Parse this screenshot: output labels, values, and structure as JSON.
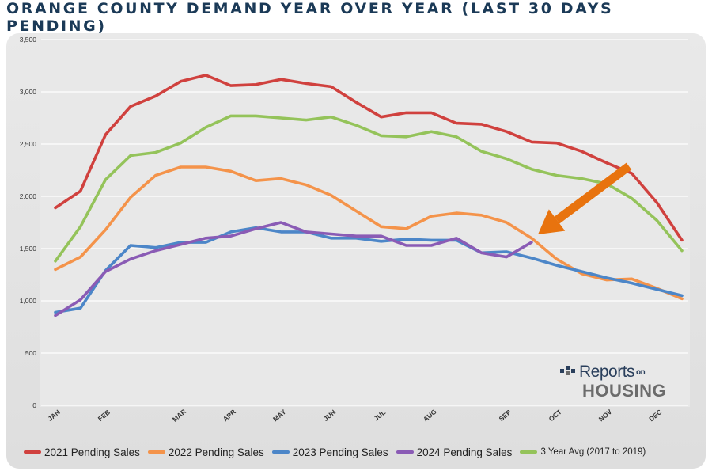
{
  "title": "ORANGE COUNTY DEMAND YEAR OVER YEAR (LAST 30 DAYS PENDING)",
  "logo": {
    "line1": "Reports",
    "on": "on",
    "line2": "HOUSING"
  },
  "arrow_color": "#e8730e",
  "chart_data": {
    "type": "line",
    "ylim": [
      0,
      3500
    ],
    "yticks": [
      0,
      500,
      1000,
      1500,
      2000,
      2500,
      3000,
      3500
    ],
    "ytick_labels": [
      "0",
      "500",
      "1,000",
      "1,500",
      "2,000",
      "2,500",
      "3,000",
      "3,500"
    ],
    "xlim": [
      0,
      23
    ],
    "xtick_positions": [
      0,
      2,
      5,
      7,
      9,
      11,
      13,
      15,
      18,
      20,
      22,
      24
    ],
    "xtick_labels": [
      "JAN",
      "FEB",
      "MAR",
      "APR",
      "MAY",
      "JUN",
      "JUL",
      "AUG",
      "SEP",
      "OCT",
      "NOV",
      "DEC"
    ],
    "series": [
      {
        "name": "2021 Pending Sales",
        "color": "#d0413e",
        "values": [
          1890,
          2050,
          2590,
          2860,
          2960,
          3100,
          3160,
          3060,
          3070,
          3120,
          3080,
          3050,
          2900,
          2760,
          2800,
          2800,
          2700,
          2690,
          2620,
          2520,
          2510,
          2430,
          2320,
          2220,
          1940,
          1580
        ]
      },
      {
        "name": "2022 Pending Sales",
        "color": "#f4934a",
        "values": [
          1300,
          1420,
          1680,
          1990,
          2200,
          2280,
          2280,
          2240,
          2150,
          2170,
          2110,
          2010,
          1860,
          1710,
          1690,
          1810,
          1840,
          1820,
          1750,
          1600,
          1400,
          1260,
          1200,
          1210,
          1120,
          1020
        ]
      },
      {
        "name": "2023 Pending Sales",
        "color": "#4c86c8",
        "values": [
          890,
          930,
          1290,
          1530,
          1510,
          1560,
          1560,
          1660,
          1700,
          1660,
          1660,
          1600,
          1600,
          1570,
          1590,
          1580,
          1580,
          1460,
          1470,
          1410,
          1340,
          1280,
          1220,
          1170,
          1110,
          1050
        ]
      },
      {
        "name": "2024 Pending Sales",
        "color": "#8a5bb5",
        "values": [
          860,
          1010,
          1280,
          1400,
          1480,
          1540,
          1600,
          1620,
          1690,
          1750,
          1660,
          1640,
          1620,
          1620,
          1530,
          1530,
          1600,
          1460,
          1420,
          1560
        ]
      },
      {
        "name": "3 Year Avg (2017 to 2019)",
        "color": "#94c35a",
        "values": [
          1380,
          1710,
          2160,
          2390,
          2420,
          2510,
          2660,
          2770,
          2770,
          2750,
          2730,
          2760,
          2680,
          2580,
          2570,
          2620,
          2570,
          2430,
          2360,
          2260,
          2200,
          2170,
          2120,
          1980,
          1770,
          1480
        ]
      }
    ]
  }
}
